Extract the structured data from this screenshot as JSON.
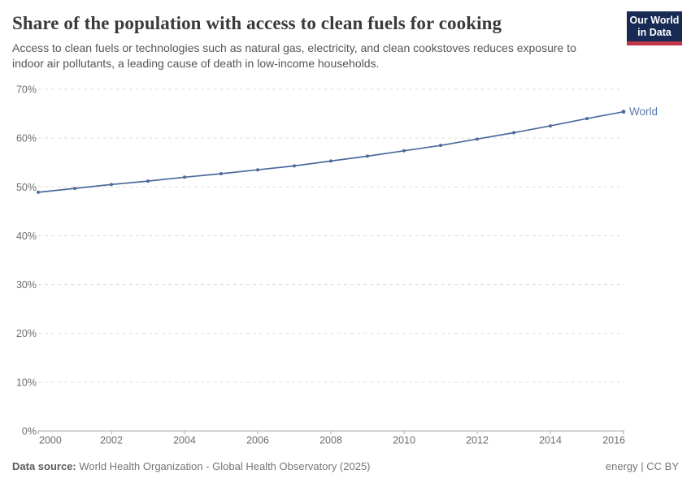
{
  "header": {
    "title": "Share of the population with access to clean fuels for cooking",
    "subtitle": "Access to clean fuels or technologies such as natural gas, electricity, and clean cookstoves reduces exposure to indoor air pollutants, a leading cause of death in low-income households.",
    "logo": {
      "line1": "Our World",
      "line2": "in Data"
    }
  },
  "chart_data": {
    "type": "line",
    "title": "Share of the population with access to clean fuels for cooking",
    "x": [
      2000,
      2001,
      2002,
      2003,
      2004,
      2005,
      2006,
      2007,
      2008,
      2009,
      2010,
      2011,
      2012,
      2013,
      2014,
      2015,
      2016
    ],
    "series": [
      {
        "name": "World",
        "values": [
          48.9,
          49.7,
          50.5,
          51.2,
          52.0,
          52.7,
          53.5,
          54.3,
          55.3,
          56.3,
          57.4,
          58.5,
          59.8,
          61.1,
          62.5,
          64.0,
          65.4
        ],
        "color": "#4C6A9C",
        "label_color": "#5878AD"
      }
    ],
    "xlabel": "",
    "ylabel": "",
    "ylim": [
      0,
      70
    ],
    "yticks": [
      0,
      10,
      20,
      30,
      40,
      50,
      60,
      70
    ],
    "ytick_suffix": "%",
    "xticks": [
      2000,
      2002,
      2004,
      2006,
      2008,
      2010,
      2012,
      2014,
      2016
    ],
    "grid": "horizontal-dashed",
    "legend_position": "end-of-line",
    "colors": {
      "gridline": "#dcdcdc",
      "axis": "#a8a8a8",
      "tick_label": "#6e6e6e"
    }
  },
  "footer": {
    "source_label": "Data source:",
    "source_value": " World Health Organization - Global Health Observatory (2025)",
    "note_right": "energy | CC BY"
  }
}
